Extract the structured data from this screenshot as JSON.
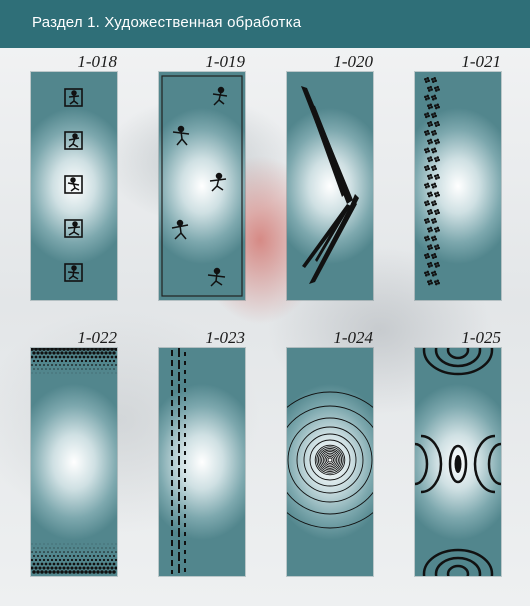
{
  "header": {
    "title": "Раздел 1.  Художественная обработка"
  },
  "panels": [
    {
      "code": "1-018",
      "motif": "framed-figure-tiles"
    },
    {
      "code": "1-019",
      "motif": "dancing-figures"
    },
    {
      "code": "1-020",
      "motif": "chevron-shards"
    },
    {
      "code": "1-021",
      "motif": "flower-column"
    },
    {
      "code": "1-022",
      "motif": "dot-gradient-bands"
    },
    {
      "code": "1-023",
      "motif": "dashed-stripes"
    },
    {
      "code": "1-024",
      "motif": "concentric-circles"
    },
    {
      "code": "1-025",
      "motif": "ring-ellipses"
    }
  ],
  "colors": {
    "header": "#2f6f78",
    "glass_edge": "#52868d",
    "glass_center": "#ffffff",
    "pattern": "#111111"
  }
}
